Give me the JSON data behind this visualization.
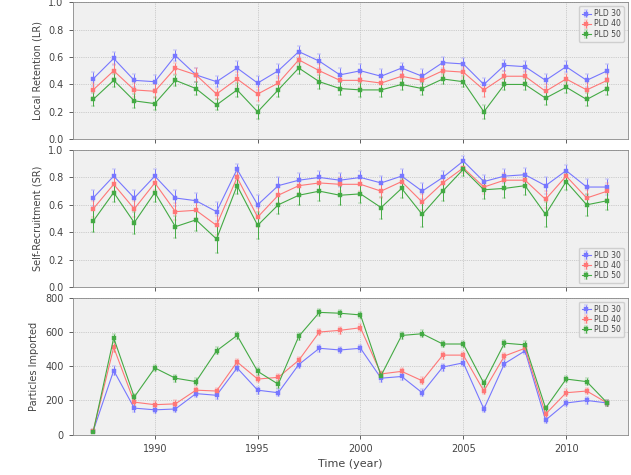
{
  "years": [
    1987,
    1988,
    1989,
    1990,
    1991,
    1992,
    1993,
    1994,
    1995,
    1996,
    1997,
    1998,
    1999,
    2000,
    2001,
    2002,
    2003,
    2004,
    2005,
    2006,
    2007,
    2008,
    2009,
    2010,
    2011,
    2012
  ],
  "LR": {
    "pld30": [
      0.44,
      0.59,
      0.43,
      0.42,
      0.61,
      0.47,
      0.42,
      0.52,
      0.41,
      0.5,
      0.64,
      0.57,
      0.47,
      0.5,
      0.46,
      0.52,
      0.46,
      0.56,
      0.55,
      0.4,
      0.54,
      0.53,
      0.43,
      0.53,
      0.43,
      0.5
    ],
    "pld40": [
      0.36,
      0.5,
      0.36,
      0.35,
      0.52,
      0.47,
      0.33,
      0.44,
      0.33,
      0.41,
      0.58,
      0.5,
      0.43,
      0.43,
      0.41,
      0.46,
      0.43,
      0.5,
      0.49,
      0.36,
      0.46,
      0.46,
      0.35,
      0.44,
      0.36,
      0.43
    ],
    "pld50": [
      0.29,
      0.43,
      0.28,
      0.26,
      0.43,
      0.37,
      0.25,
      0.36,
      0.2,
      0.36,
      0.52,
      0.42,
      0.37,
      0.36,
      0.36,
      0.4,
      0.37,
      0.44,
      0.42,
      0.2,
      0.4,
      0.4,
      0.3,
      0.38,
      0.29,
      0.37
    ],
    "pld30_err": [
      0.05,
      0.05,
      0.05,
      0.05,
      0.04,
      0.05,
      0.04,
      0.05,
      0.05,
      0.05,
      0.04,
      0.05,
      0.05,
      0.05,
      0.05,
      0.04,
      0.05,
      0.04,
      0.04,
      0.05,
      0.04,
      0.04,
      0.05,
      0.04,
      0.05,
      0.05
    ],
    "pld40_err": [
      0.05,
      0.05,
      0.05,
      0.05,
      0.04,
      0.05,
      0.04,
      0.05,
      0.05,
      0.05,
      0.04,
      0.05,
      0.05,
      0.05,
      0.05,
      0.04,
      0.05,
      0.04,
      0.04,
      0.05,
      0.04,
      0.04,
      0.05,
      0.04,
      0.05,
      0.05
    ],
    "pld50_err": [
      0.05,
      0.05,
      0.05,
      0.05,
      0.04,
      0.05,
      0.04,
      0.05,
      0.05,
      0.05,
      0.04,
      0.05,
      0.05,
      0.05,
      0.05,
      0.04,
      0.05,
      0.04,
      0.04,
      0.05,
      0.04,
      0.04,
      0.05,
      0.04,
      0.05,
      0.05
    ]
  },
  "SR": {
    "pld30": [
      0.65,
      0.81,
      0.65,
      0.81,
      0.65,
      0.63,
      0.55,
      0.86,
      0.6,
      0.74,
      0.78,
      0.8,
      0.78,
      0.8,
      0.76,
      0.81,
      0.7,
      0.8,
      0.92,
      0.77,
      0.81,
      0.82,
      0.74,
      0.85,
      0.73,
      0.73
    ],
    "pld40": [
      0.57,
      0.75,
      0.57,
      0.76,
      0.55,
      0.56,
      0.45,
      0.8,
      0.51,
      0.67,
      0.74,
      0.76,
      0.75,
      0.75,
      0.7,
      0.77,
      0.62,
      0.76,
      0.87,
      0.73,
      0.78,
      0.78,
      0.64,
      0.81,
      0.65,
      0.7
    ],
    "pld50": [
      0.48,
      0.69,
      0.47,
      0.69,
      0.44,
      0.49,
      0.35,
      0.74,
      0.45,
      0.6,
      0.67,
      0.7,
      0.67,
      0.68,
      0.58,
      0.72,
      0.53,
      0.7,
      0.86,
      0.71,
      0.72,
      0.74,
      0.53,
      0.77,
      0.6,
      0.63
    ],
    "pld30_err": [
      0.06,
      0.05,
      0.06,
      0.05,
      0.06,
      0.06,
      0.07,
      0.04,
      0.07,
      0.06,
      0.05,
      0.05,
      0.05,
      0.05,
      0.05,
      0.05,
      0.06,
      0.05,
      0.04,
      0.05,
      0.05,
      0.05,
      0.06,
      0.04,
      0.06,
      0.06
    ],
    "pld40_err": [
      0.06,
      0.05,
      0.06,
      0.05,
      0.06,
      0.06,
      0.07,
      0.04,
      0.07,
      0.06,
      0.05,
      0.05,
      0.05,
      0.05,
      0.05,
      0.05,
      0.06,
      0.05,
      0.04,
      0.05,
      0.05,
      0.05,
      0.06,
      0.04,
      0.06,
      0.06
    ],
    "pld50_err": [
      0.08,
      0.07,
      0.08,
      0.07,
      0.08,
      0.08,
      0.1,
      0.06,
      0.1,
      0.07,
      0.07,
      0.07,
      0.07,
      0.07,
      0.08,
      0.07,
      0.09,
      0.07,
      0.05,
      0.07,
      0.07,
      0.07,
      0.09,
      0.06,
      0.08,
      0.07
    ]
  },
  "IMP": {
    "pld30": [
      20,
      375,
      155,
      145,
      150,
      240,
      230,
      390,
      260,
      245,
      410,
      505,
      495,
      505,
      330,
      340,
      245,
      395,
      420,
      150,
      415,
      490,
      85,
      185,
      200,
      185
    ],
    "pld40": [
      20,
      510,
      190,
      175,
      180,
      260,
      255,
      425,
      325,
      335,
      435,
      600,
      610,
      625,
      355,
      370,
      315,
      465,
      465,
      255,
      460,
      505,
      120,
      245,
      255,
      185
    ],
    "pld50": [
      15,
      565,
      220,
      390,
      330,
      310,
      490,
      580,
      370,
      295,
      575,
      715,
      710,
      700,
      345,
      580,
      590,
      530,
      530,
      300,
      535,
      525,
      155,
      325,
      310,
      185
    ],
    "pld30_err": [
      8,
      25,
      20,
      20,
      20,
      20,
      20,
      20,
      20,
      20,
      20,
      20,
      20,
      20,
      20,
      20,
      20,
      20,
      20,
      20,
      20,
      20,
      15,
      20,
      20,
      20
    ],
    "pld40_err": [
      8,
      25,
      20,
      20,
      20,
      20,
      20,
      20,
      20,
      20,
      20,
      20,
      20,
      20,
      20,
      20,
      20,
      20,
      20,
      20,
      20,
      20,
      15,
      20,
      20,
      20
    ],
    "pld50_err": [
      8,
      25,
      20,
      20,
      20,
      20,
      20,
      20,
      20,
      20,
      20,
      20,
      20,
      20,
      20,
      20,
      20,
      20,
      20,
      20,
      20,
      20,
      15,
      20,
      20,
      20
    ]
  },
  "colors": {
    "pld30": "#7777ff",
    "pld40": "#ff7777",
    "pld50": "#44aa44"
  },
  "xlim": [
    1986.0,
    2013.0
  ],
  "xticks": [
    1990,
    1995,
    2000,
    2005,
    2010
  ],
  "LR_ylim": [
    0,
    1.0
  ],
  "LR_yticks": [
    0,
    0.2,
    0.4,
    0.6,
    0.8,
    1.0
  ],
  "SR_ylim": [
    0,
    1.0
  ],
  "SR_yticks": [
    0,
    0.2,
    0.4,
    0.6,
    0.8,
    1.0
  ],
  "IMP_ylim": [
    0,
    800
  ],
  "IMP_yticks": [
    0,
    200,
    400,
    600,
    800
  ],
  "ylabel_LR": "Local Retention (LR)",
  "ylabel_SR": "Self-Recruitment (SR)",
  "ylabel_IMP": "Particles Imported",
  "xlabel": "Time (year)",
  "legend_labels": [
    "PLD 30",
    "PLD 40",
    "PLD 50"
  ],
  "marker": "s",
  "markersize": 2.5,
  "linewidth": 0.8,
  "bg_color": "#f0f0f0",
  "fig_color": "#ffffff"
}
